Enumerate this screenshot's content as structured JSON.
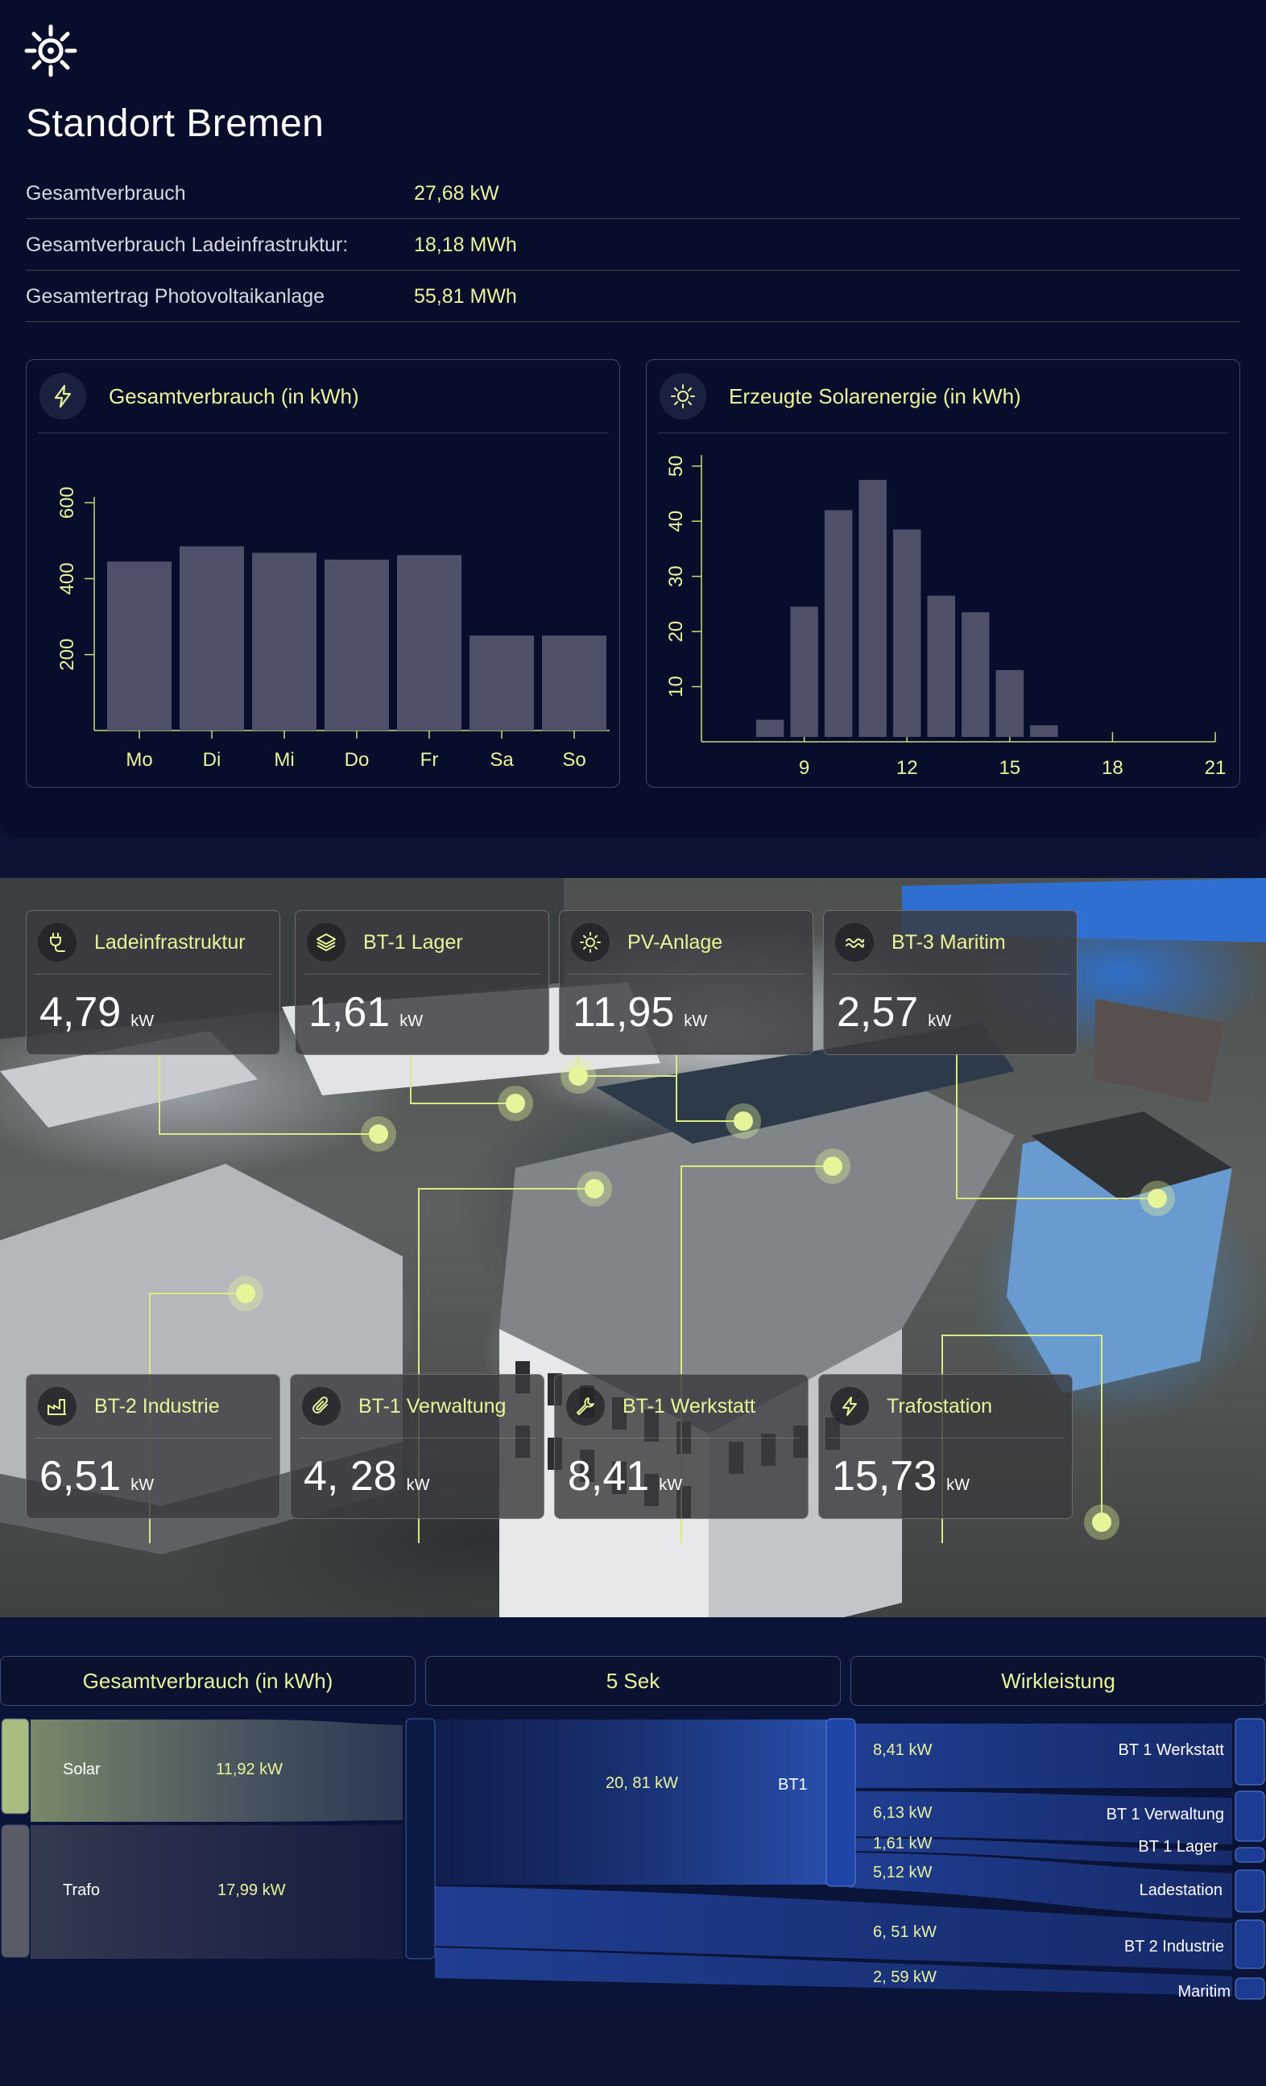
{
  "header": {
    "title": "Standort Bremen",
    "logo": "sun-gear-icon"
  },
  "kpis": [
    {
      "label": "Gesamtverbrauch",
      "value": "27,68 kW"
    },
    {
      "label": "Gesamtverbrauch Ladeinfrastruktur:",
      "value": "18,18 MWh"
    },
    {
      "label": "Gesamtertrag Photovoltaikanlage",
      "value": "55,81 MWh"
    }
  ],
  "charts": {
    "consumption": {
      "title": "Gesamtverbrauch (in kWh)",
      "icon": "lightning-icon"
    },
    "solar": {
      "title": "Erzeugte Solarenergie (in kWh)",
      "icon": "sun-icon"
    }
  },
  "chart_data": [
    {
      "type": "bar",
      "title": "Gesamtverbrauch (in kWh)",
      "categories": [
        "Mo",
        "Di",
        "Mi",
        "Do",
        "Fr",
        "Sa",
        "So"
      ],
      "values": [
        445,
        485,
        468,
        450,
        462,
        250,
        250
      ],
      "yticks": [
        "200",
        "400",
        "600"
      ],
      "ylim": [
        0,
        700
      ],
      "color": "#4d5068"
    },
    {
      "type": "bar",
      "title": "Erzeugte Solarenergie (in kWh)",
      "x": [
        7,
        8,
        9,
        10,
        11,
        12,
        13,
        14,
        15,
        16,
        17,
        18
      ],
      "values": [
        0.5,
        4,
        24.5,
        42,
        47.5,
        38.5,
        26.5,
        23.5,
        13,
        3,
        0,
        0
      ],
      "xticks": [
        "9",
        "12",
        "15",
        "18",
        "21"
      ],
      "yticks": [
        "10",
        "20",
        "30",
        "40",
        "50"
      ],
      "xlim": [
        6,
        21
      ],
      "ylim": [
        0,
        52
      ],
      "color": "#4d5068"
    }
  ],
  "tiles": [
    {
      "title": "Ladeinfrastruktur",
      "value": "4,79",
      "unit": "kW",
      "icon": "charging-plug-icon"
    },
    {
      "title": "BT-1 Lager",
      "value": "1,61",
      "unit": "kW",
      "icon": "layers-icon"
    },
    {
      "title": "PV-Anlage",
      "value": "11,95",
      "unit": "kW",
      "icon": "sun-icon"
    },
    {
      "title": "BT-3 Maritim",
      "value": "2,57",
      "unit": "kW",
      "icon": "waves-icon"
    },
    {
      "title": "BT-2 Industrie",
      "value": "6,51",
      "unit": "kW",
      "icon": "industry-icon"
    },
    {
      "title": "BT-1 Verwaltung",
      "value": "4, 28",
      "unit": "kW",
      "icon": "paperclip-icon"
    },
    {
      "title": "BT-1 Werkstatt",
      "value": "8,41",
      "unit": "kW",
      "icon": "wrench-icon"
    },
    {
      "title": "Trafostation",
      "value": "15,73",
      "unit": "kW",
      "icon": "lightning-icon"
    }
  ],
  "sankey": {
    "headers": [
      "Gesamtverbrauch (in kWh)",
      "5 Sek",
      "Wirkleistung"
    ],
    "sources": [
      {
        "label": "Solar",
        "value": "11,92 kW"
      },
      {
        "label": "Trafo",
        "value": "17,99 kW"
      }
    ],
    "hub": {
      "label": "BT1",
      "value": "20, 81 kW"
    },
    "targets": [
      {
        "label": "BT 1 Werkstatt",
        "value": "8,41 kW"
      },
      {
        "label": "BT 1 Verwaltung",
        "value": "6,13 kW"
      },
      {
        "label": "BT 1 Lager",
        "value": "1,61 kW"
      },
      {
        "label": "Ladestation",
        "value": "5,12 kW"
      },
      {
        "label": "BT 2 Industrie",
        "value": "6, 51 kW"
      },
      {
        "label": "Maritim",
        "value": "2, 59 kW"
      }
    ]
  }
}
